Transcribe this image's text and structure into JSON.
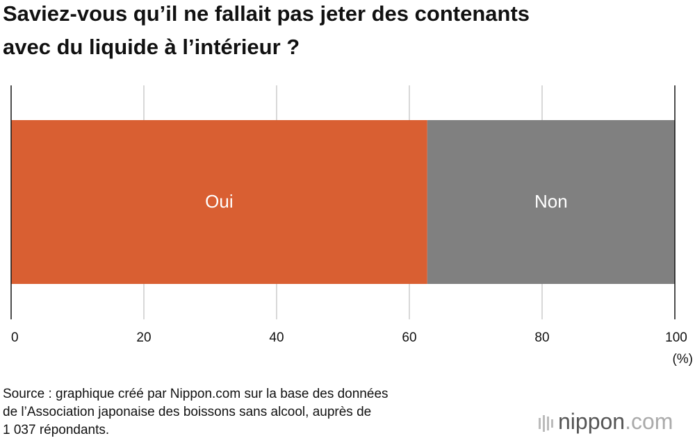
{
  "chart_data": {
    "type": "stacked-barh",
    "title": [
      "Saviez-vous qu’il ne fallait pas jeter des contenants",
      "avec du liquide à l’intérieur ?"
    ],
    "categories": [
      null
    ],
    "series": [
      {
        "name": "Oui",
        "color": "#d95f32",
        "values": [
          62.7
        ]
      },
      {
        "name": "Non",
        "color": "#808080",
        "values": [
          37.3
        ]
      }
    ],
    "xlim": [
      0,
      100
    ],
    "xticks": [
      0,
      20,
      40,
      60,
      80,
      100
    ],
    "x_unit": "(%)",
    "grid": true,
    "source": [
      "Source : graphique créé par Nippon.com sur la base des données",
      "de l’Association japonaise des boissons sans alcool, auprès de",
      "1 037 répondants."
    ],
    "logo": [
      "nippon",
      ".com"
    ]
  }
}
